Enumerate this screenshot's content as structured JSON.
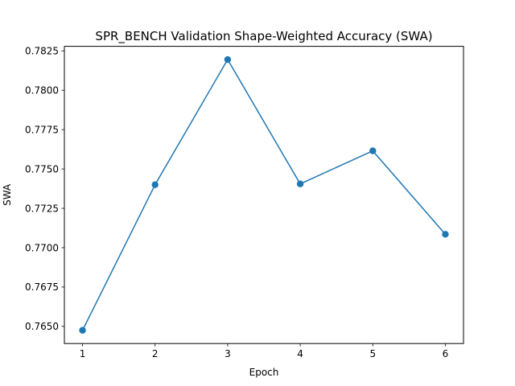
{
  "chart_data": {
    "type": "line",
    "title": "SPR_BENCH Validation Shape-Weighted Accuracy (SWA)",
    "xlabel": "Epoch",
    "ylabel": "SWA",
    "x": [
      1,
      2,
      3,
      4,
      5,
      6
    ],
    "series": [
      {
        "values": [
          0.76475,
          0.774,
          0.78195,
          0.77405,
          0.77615,
          0.77085
        ],
        "color": "#1f77b4",
        "marker": "circle"
      }
    ],
    "xticks": [
      "1",
      "2",
      "3",
      "4",
      "5",
      "6"
    ],
    "yticks": [
      "0.7650",
      "0.7675",
      "0.7700",
      "0.7725",
      "0.7750",
      "0.7775",
      "0.7800",
      "0.7825"
    ],
    "xlim": [
      0.75,
      6.25
    ],
    "ylim": [
      0.76391,
      0.78279
    ],
    "grid": false,
    "legend": "none"
  }
}
